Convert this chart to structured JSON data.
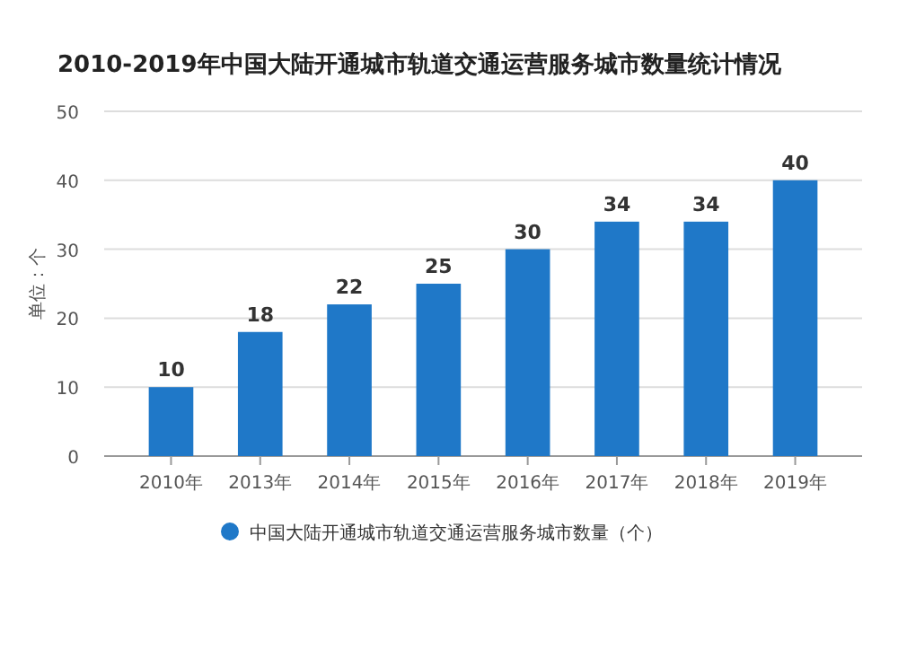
{
  "chart_data": {
    "type": "bar",
    "title": "2010-2019年中国大陆开通城市轨道交通运营服务城市数量统计情况",
    "ylabel": "单位：个",
    "categories": [
      "2010年",
      "2013年",
      "2014年",
      "2015年",
      "2016年",
      "2017年",
      "2018年",
      "2019年"
    ],
    "series": [
      {
        "name": "中国大陆开通城市轨道交通运营服务城市数量（个）",
        "color": "#1f78c8",
        "values": [
          10,
          18,
          22,
          25,
          30,
          34,
          34,
          40
        ]
      }
    ],
    "ylim": [
      0,
      50
    ],
    "yticks": [
      0,
      10,
      20,
      30,
      40,
      50
    ],
    "grid": "y",
    "legend": "bottom",
    "data_labels": true
  }
}
